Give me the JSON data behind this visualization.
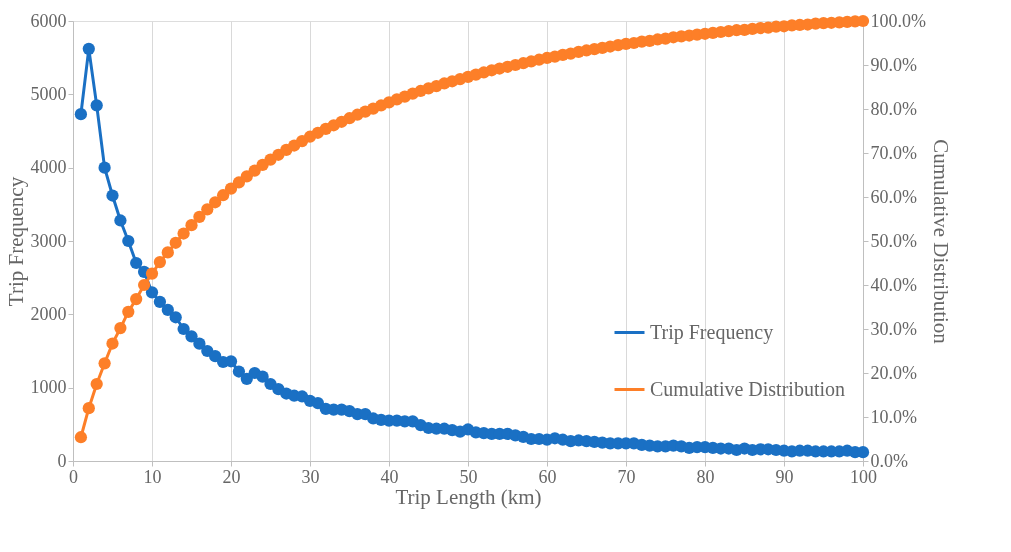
{
  "chart_data": {
    "type": "line",
    "xlabel": "Trip Length (km)",
    "ylabel": "Trip Frequency",
    "y2label": "Cumulative Distribution",
    "x": [
      1,
      2,
      3,
      4,
      5,
      6,
      7,
      8,
      9,
      10,
      11,
      12,
      13,
      14,
      15,
      16,
      17,
      18,
      19,
      20,
      21,
      22,
      23,
      24,
      25,
      26,
      27,
      28,
      29,
      30,
      31,
      32,
      33,
      34,
      35,
      36,
      37,
      38,
      39,
      40,
      41,
      42,
      43,
      44,
      45,
      46,
      47,
      48,
      49,
      50,
      51,
      52,
      53,
      54,
      55,
      56,
      57,
      58,
      59,
      60,
      61,
      62,
      63,
      64,
      65,
      66,
      67,
      68,
      69,
      70,
      71,
      72,
      73,
      74,
      75,
      76,
      77,
      78,
      79,
      80,
      81,
      82,
      83,
      84,
      85,
      86,
      87,
      88,
      89,
      90,
      91,
      92,
      93,
      94,
      95,
      96,
      97,
      98,
      99,
      100
    ],
    "series": [
      {
        "name": "Trip Frequency",
        "color": "#1a70c4",
        "values": [
          4730,
          5620,
          4850,
          4000,
          3620,
          3280,
          3000,
          2700,
          2580,
          2300,
          2170,
          2060,
          1960,
          1800,
          1700,
          1600,
          1500,
          1430,
          1350,
          1360,
          1220,
          1120,
          1200,
          1150,
          1050,
          980,
          920,
          890,
          880,
          820,
          790,
          710,
          700,
          700,
          680,
          640,
          640,
          580,
          560,
          550,
          550,
          540,
          540,
          490,
          450,
          440,
          440,
          420,
          400,
          430,
          390,
          380,
          370,
          370,
          370,
          350,
          330,
          300,
          300,
          290,
          310,
          290,
          270,
          280,
          270,
          260,
          250,
          240,
          240,
          240,
          240,
          220,
          210,
          200,
          200,
          210,
          200,
          180,
          190,
          190,
          180,
          170,
          170,
          150,
          170,
          150,
          160,
          160,
          150,
          140,
          130,
          140,
          140,
          130,
          130,
          130,
          130,
          140,
          120,
          120
        ]
      },
      {
        "name": "Cumulative Distribution",
        "color": "#fd7f28",
        "axis": "y2",
        "values": [
          5.4,
          12,
          17.5,
          22.2,
          26.7,
          30.2,
          33.9,
          36.8,
          40,
          42.6,
          45.2,
          47.4,
          49.6,
          51.7,
          53.6,
          55.5,
          57.2,
          58.8,
          60.4,
          61.9,
          63.3,
          64.7,
          66.0,
          67.3,
          68.5,
          69.6,
          70.7,
          71.7,
          72.7,
          73.7,
          74.6,
          75.5,
          76.3,
          77.1,
          77.9,
          78.7,
          79.4,
          80.1,
          80.8,
          81.5,
          82.2,
          82.8,
          83.5,
          84.1,
          84.7,
          85.2,
          85.8,
          86.3,
          86.8,
          87.3,
          87.8,
          88.3,
          88.8,
          89.2,
          89.6,
          90.0,
          90.4,
          90.8,
          91.2,
          91.6,
          91.9,
          92.3,
          92.6,
          93.0,
          93.3,
          93.6,
          93.9,
          94.2,
          94.5,
          94.8,
          95.0,
          95.3,
          95.5,
          95.8,
          96.0,
          96.3,
          96.5,
          96.7,
          96.9,
          97.1,
          97.3,
          97.5,
          97.7,
          97.9,
          98.0,
          98.2,
          98.4,
          98.5,
          98.7,
          98.8,
          99.0,
          99.1,
          99.2,
          99.4,
          99.5,
          99.6,
          99.7,
          99.8,
          99.9,
          100
        ]
      }
    ],
    "xlim": [
      0,
      100
    ],
    "xticks": [
      0,
      10,
      20,
      30,
      40,
      50,
      60,
      70,
      80,
      90,
      100
    ],
    "ylim": [
      0,
      6000
    ],
    "yticks": [
      0,
      1000,
      2000,
      3000,
      4000,
      5000,
      6000
    ],
    "y2lim": [
      0,
      100
    ],
    "y2ticks": [
      {
        "value": 0,
        "label": "0.0%"
      },
      {
        "value": 10,
        "label": "10.0%"
      },
      {
        "value": 20,
        "label": "20.0%"
      },
      {
        "value": 30,
        "label": "30.0%"
      },
      {
        "value": 40,
        "label": "40.0%"
      },
      {
        "value": 50,
        "label": "50.0%"
      },
      {
        "value": 60,
        "label": "60.0%"
      },
      {
        "value": 70,
        "label": "70.0%"
      },
      {
        "value": 80,
        "label": "80.0%"
      },
      {
        "value": 90,
        "label": "90.0%"
      },
      {
        "value": 100,
        "label": "100.0%"
      }
    ],
    "grid": "x",
    "legend": "right",
    "marker": "circle",
    "line_style": "solid"
  }
}
